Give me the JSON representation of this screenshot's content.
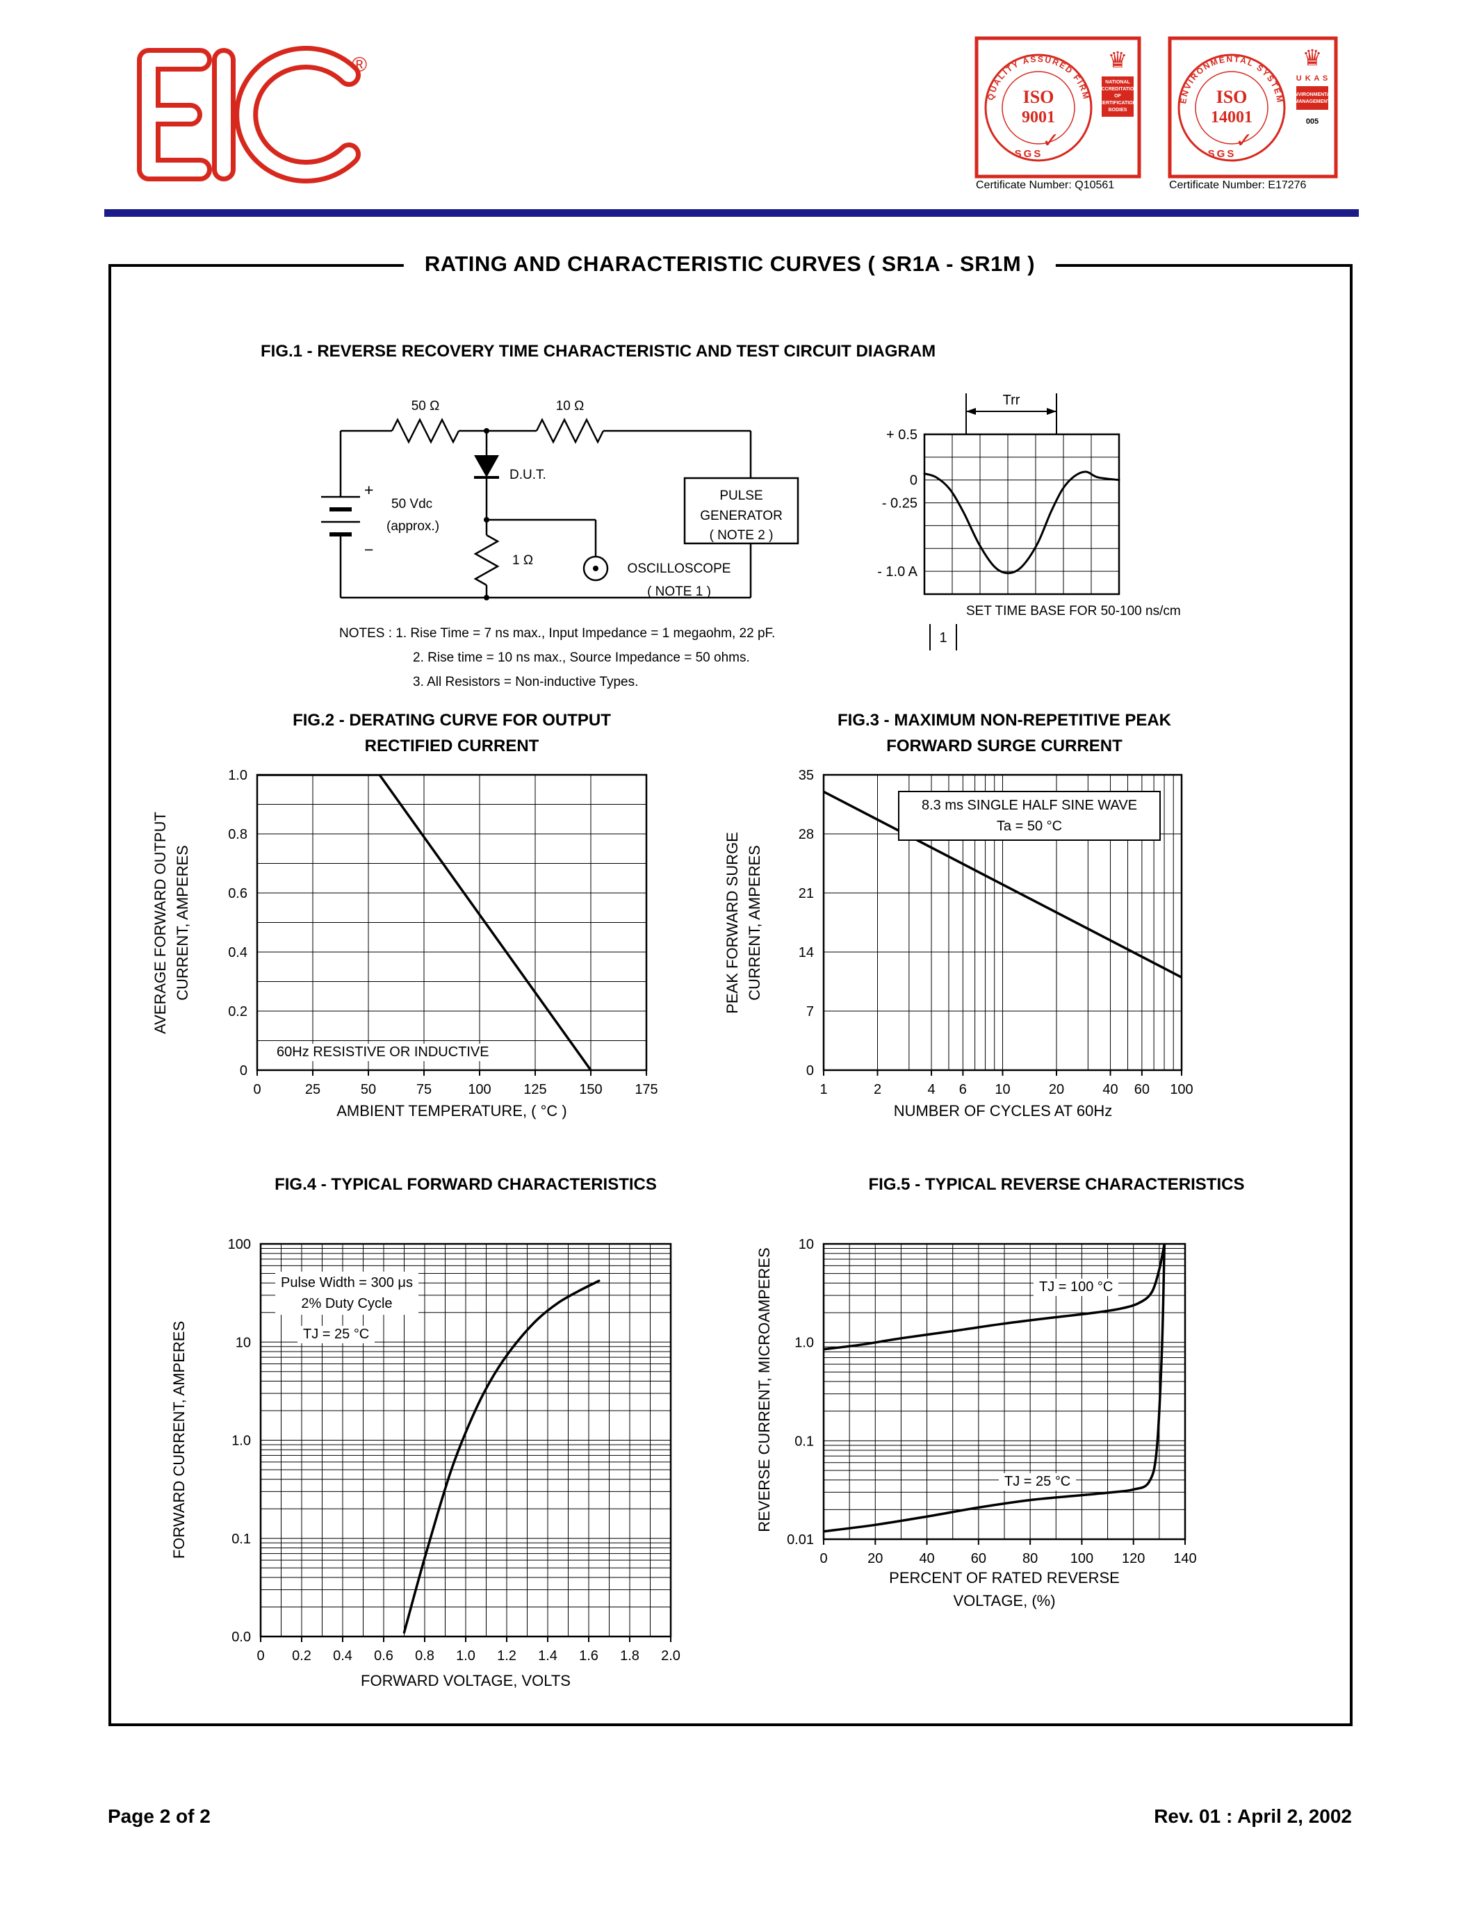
{
  "doc": {
    "main_title": "RATING AND CHARACTERISTIC CURVES  ( SR1A - SR1M )",
    "footer_left": "Page 2 of 2",
    "footer_right": "Rev. 01 : April 2, 2002"
  },
  "header": {
    "logo": {
      "text": "EIC",
      "reg": "®"
    },
    "badges": [
      {
        "ring": "QUALITY ASSURED FIRM",
        "iso": "ISO",
        "num": "9001",
        "sgs": "SGS",
        "check": "✓",
        "crown": "♛",
        "side_lines": [
          "NATIONAL",
          "ACCREDITATION",
          "OF",
          "CERTIFICATION",
          "BODIES"
        ],
        "cert": "Certificate Number: Q10561"
      },
      {
        "ring": "ENVIRONMENTAL SYSTEM",
        "iso": "ISO",
        "num": "14001",
        "sgs": "SGS",
        "check": "✓",
        "crown": "♛",
        "ukas": "U K A S",
        "side_lines": [
          "ENVIRONMENTAL",
          "MANAGEMENT"
        ],
        "num_code": "005",
        "cert": "Certificate Number: E17276"
      }
    ]
  },
  "fig1": {
    "title": "FIG.1 - REVERSE RECOVERY TIME CHARACTERISTIC AND TEST CIRCUIT DIAGRAM",
    "circuit": {
      "r_top1": "50 Ω",
      "r_top2": "10 Ω",
      "dut": "D.U.T.",
      "source_line1": "50 Vdc",
      "source_line2": "(approx.)",
      "r_shunt": "1 Ω",
      "plus": "+",
      "minus": "−",
      "pulse_gen": "PULSE\nGENERATOR\n( NOTE 2 )",
      "oscilloscope": "OSCILLOSCOPE\n( NOTE 1 )"
    },
    "timebase": "SET TIME BASE FOR  50-100 ns/cm",
    "notes": [
      "NOTES :  1. Rise Time = 7 ns max., Input Impedance = 1 megaohm, 22 pF.",
      "2. Rise time = 10 ns max., Source Impedance = 50 ohms.",
      "3. All Resistors = Non-inductive Types."
    ]
  },
  "chart_data": [
    {
      "id": "fig2",
      "type": "line",
      "title": "FIG.2 - DERATING CURVE FOR OUTPUT\nRECTIFIED CURRENT",
      "xlabel": "AMBIENT TEMPERATURE, ( °C )",
      "ylabel": "AVERAGE FORWARD OUTPUT\nCURRENT, AMPERES",
      "x_scale": "linear",
      "y_scale": "linear",
      "xlim": [
        0,
        175
      ],
      "ylim": [
        0,
        1.0
      ],
      "x_ticks": [
        0,
        25,
        50,
        75,
        100,
        125,
        150,
        175
      ],
      "x_tick_labels": [
        "0",
        "25",
        "50",
        "75",
        "100",
        "125",
        "150",
        "175"
      ],
      "y_ticks": [
        0,
        0.2,
        0.4,
        0.6,
        0.8,
        1.0
      ],
      "y_tick_labels": [
        "0",
        "0.2",
        "0.4",
        "0.6",
        "0.8",
        "1.0"
      ],
      "grid": "on",
      "annotation": "60Hz RESISTIVE OR INDUCTIVE",
      "series": [
        {
          "name": "derating-curve",
          "points": [
            [
              0,
              1.0
            ],
            [
              55,
              1.0
            ],
            [
              150,
              0
            ]
          ]
        }
      ]
    },
    {
      "id": "fig3",
      "type": "line",
      "title": "FIG.3 - MAXIMUM NON-REPETITIVE PEAK\nFORWARD SURGE CURRENT",
      "xlabel": "NUMBER OF CYCLES AT 60Hz",
      "ylabel": "PEAK FORWARD SURGE\nCURRENT, AMPERES",
      "x_scale": "log",
      "y_scale": "linear",
      "xlim": [
        1,
        100
      ],
      "ylim": [
        0,
        35
      ],
      "x_ticks": [
        1,
        2,
        4,
        6,
        10,
        20,
        40,
        60,
        100
      ],
      "x_tick_labels": [
        "1",
        "2",
        "4",
        "6",
        "10",
        "20",
        "40",
        "60",
        "100"
      ],
      "y_ticks": [
        0,
        7,
        14,
        21,
        28,
        35
      ],
      "y_tick_labels": [
        "0",
        "7",
        "14",
        "21",
        "28",
        "35"
      ],
      "grid": "on",
      "annotation": "8.3 ms SINGLE HALF SINE WAVE\nTa = 50 °C",
      "series": [
        {
          "name": "peak-surge-current",
          "points": [
            [
              1,
              33
            ],
            [
              100,
              11
            ]
          ]
        }
      ]
    },
    {
      "id": "fig4",
      "type": "line",
      "title": "FIG.4 - TYPICAL FORWARD  CHARACTERISTICS",
      "xlabel": "FORWARD VOLTAGE, VOLTS",
      "ylabel": "FORWARD CURRENT, AMPERES",
      "x_scale": "linear",
      "y_scale": "log",
      "xlim": [
        0,
        2.0
      ],
      "ylim": [
        0.01,
        100
      ],
      "x_ticks": [
        0,
        0.2,
        0.4,
        0.6,
        0.8,
        1.0,
        1.2,
        1.4,
        1.6,
        1.8,
        2.0
      ],
      "x_tick_labels": [
        "0",
        "0.2",
        "0.4",
        "0.6",
        "0.8",
        "1.0",
        "1.2",
        "1.4",
        "1.6",
        "1.8",
        "2.0"
      ],
      "y_ticks": [
        0.01,
        0.1,
        1.0,
        10,
        100
      ],
      "y_tick_labels": [
        "0.0",
        "0.1",
        "1.0",
        "10",
        "100"
      ],
      "grid": "on",
      "annotation": "Pulse Width = 300 μs\n2% Duty Cycle",
      "annotation2": "TJ = 25 °C",
      "series": [
        {
          "name": "forward-characteristic",
          "points": [
            [
              0.7,
              0.011
            ],
            [
              0.78,
              0.045
            ],
            [
              0.86,
              0.17
            ],
            [
              0.93,
              0.5
            ],
            [
              1.0,
              1.2
            ],
            [
              1.08,
              2.8
            ],
            [
              1.16,
              5.5
            ],
            [
              1.25,
              10
            ],
            [
              1.35,
              17
            ],
            [
              1.45,
              25
            ],
            [
              1.55,
              33
            ],
            [
              1.65,
              42
            ]
          ]
        }
      ]
    },
    {
      "id": "fig5",
      "type": "line",
      "title": "FIG.5 - TYPICAL REVERSE CHARACTERISTICS",
      "xlabel": "PERCENT OF RATED REVERSE\nVOLTAGE, (%)",
      "ylabel": "REVERSE CURRENT, MICROAMPERES",
      "x_scale": "linear",
      "y_scale": "log",
      "xlim": [
        0,
        140
      ],
      "ylim": [
        0.01,
        10
      ],
      "x_ticks": [
        0,
        20,
        40,
        60,
        80,
        100,
        120,
        140
      ],
      "x_tick_labels": [
        "0",
        "20",
        "40",
        "60",
        "80",
        "100",
        "120",
        "140"
      ],
      "y_ticks": [
        0.01,
        0.1,
        1.0,
        10
      ],
      "y_tick_labels": [
        "0.01",
        "0.1",
        "1.0",
        "10"
      ],
      "grid": "on",
      "series": [
        {
          "name": "TJ = 100 °C",
          "points": [
            [
              0,
              0.85
            ],
            [
              15,
              0.95
            ],
            [
              30,
              1.1
            ],
            [
              50,
              1.3
            ],
            [
              70,
              1.55
            ],
            [
              90,
              1.8
            ],
            [
              105,
              2.0
            ],
            [
              115,
              2.2
            ],
            [
              122,
              2.5
            ],
            [
              127,
              3.2
            ],
            [
              130,
              5.5
            ],
            [
              132,
              10
            ]
          ]
        },
        {
          "name": "TJ = 25 °C",
          "points": [
            [
              0,
              0.012
            ],
            [
              20,
              0.014
            ],
            [
              40,
              0.017
            ],
            [
              60,
              0.021
            ],
            [
              80,
              0.025
            ],
            [
              100,
              0.028
            ],
            [
              112,
              0.03
            ],
            [
              120,
              0.032
            ],
            [
              126,
              0.038
            ],
            [
              129,
              0.08
            ],
            [
              131,
              0.8
            ],
            [
              132,
              10
            ]
          ]
        }
      ]
    },
    {
      "id": "fig1_waveform",
      "type": "line",
      "title": "Reverse recovery waveform",
      "xlabel": "",
      "ylabel": "",
      "x_scale": "linear",
      "y_scale": "linear",
      "xlim": [
        0,
        1
      ],
      "ylim": [
        -1.25,
        0.5
      ],
      "trr": "Trr",
      "scale_mark": "1",
      "y_labels": [
        {
          "t": "+ 0.5",
          "v": 0.5
        },
        {
          "t": "0",
          "v": 0
        },
        {
          "t": "- 0.25",
          "v": -0.25
        },
        {
          "t": "- 1.0 A",
          "v": -1.0
        }
      ],
      "series": [
        {
          "name": "recovery-current",
          "points": [
            [
              0,
              0.07
            ],
            [
              0.06,
              0.03
            ],
            [
              0.13,
              -0.1
            ],
            [
              0.2,
              -0.35
            ],
            [
              0.28,
              -0.7
            ],
            [
              0.36,
              -0.95
            ],
            [
              0.43,
              -1.02
            ],
            [
              0.5,
              -0.95
            ],
            [
              0.58,
              -0.7
            ],
            [
              0.65,
              -0.35
            ],
            [
              0.71,
              -0.1
            ],
            [
              0.77,
              0.04
            ],
            [
              0.83,
              0.09
            ],
            [
              0.89,
              0.03
            ],
            [
              1,
              0.0
            ]
          ]
        }
      ]
    }
  ]
}
